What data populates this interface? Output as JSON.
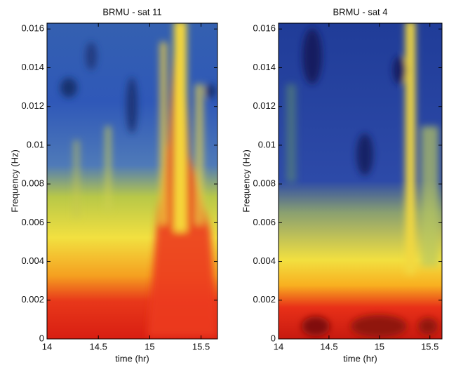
{
  "chart_data": [
    {
      "type": "heatmap",
      "title": "BRMU - sat 11",
      "xlabel": "time (hr)",
      "ylabel": "Frequency (Hz)",
      "xlim": [
        14,
        15.66
      ],
      "ylim": [
        0,
        0.0163
      ],
      "xticks": [
        14,
        14.5,
        15,
        15.5
      ],
      "yticks": [
        0,
        0.002,
        0.004,
        0.006,
        0.008,
        0.01,
        0.012,
        0.014,
        0.016
      ]
    },
    {
      "type": "heatmap",
      "title": "BRMU - sat 4",
      "xlabel": "time (hr)",
      "ylabel": "Frequency (Hz)",
      "xlim": [
        14,
        15.62
      ],
      "ylim": [
        0,
        0.0163
      ],
      "xticks": [
        14,
        14.5,
        15,
        15.5
      ],
      "yticks": [
        0,
        0.002,
        0.004,
        0.006,
        0.008,
        0.01,
        0.012,
        0.014,
        0.016
      ]
    }
  ]
}
